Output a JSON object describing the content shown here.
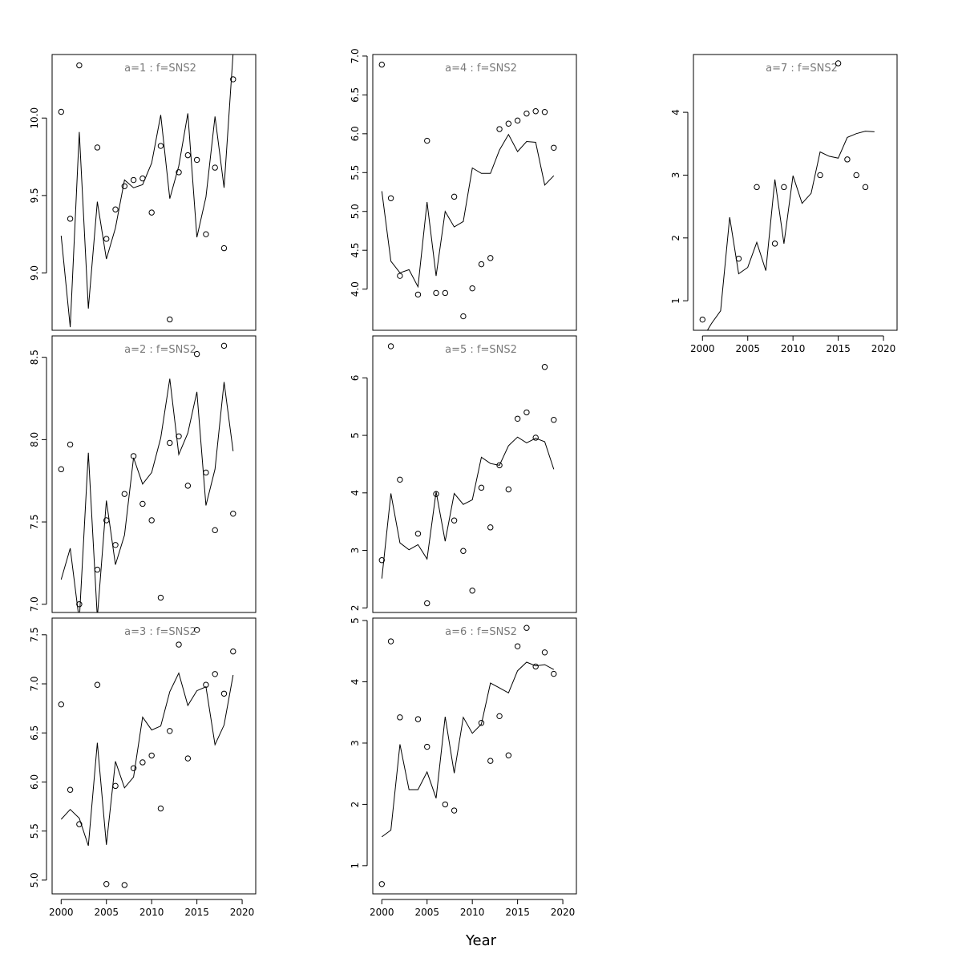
{
  "figure": {
    "xlabel": "Year"
  },
  "chart_data": [
    {
      "type": "line",
      "title": "a=1 : f=SNS2",
      "xlim": [
        1999.0,
        2021.5
      ],
      "ylim": [
        8.63,
        10.41
      ],
      "yticks": [
        9.0,
        9.5,
        10.0
      ],
      "ytick_labels": [
        "9.0",
        "9.5",
        "10.0"
      ],
      "xticks": [
        2000,
        2005,
        2010,
        2015,
        2020
      ],
      "xtick_labels": [
        "2000",
        "2005",
        "2010",
        "2015",
        "2020"
      ],
      "show_x_axis": false,
      "series": [
        {
          "kind": "points",
          "x": [
            2000,
            2001,
            2002,
            2004,
            2005,
            2006,
            2007,
            2008,
            2009,
            2010,
            2011,
            2012,
            2013,
            2014,
            2015,
            2016,
            2017,
            2018,
            2019
          ],
          "y": [
            10.04,
            9.35,
            10.34,
            9.81,
            9.22,
            9.41,
            9.56,
            9.6,
            9.61,
            9.39,
            9.82,
            8.7,
            9.65,
            9.76,
            9.73,
            9.25,
            9.68,
            9.16,
            10.25
          ]
        },
        {
          "kind": "line",
          "x": [
            2000,
            2001,
            2002,
            2003,
            2004,
            2005,
            2006,
            2007,
            2008,
            2009,
            2010,
            2011,
            2012,
            2013,
            2014,
            2015,
            2016,
            2017,
            2018,
            2019
          ],
          "y": [
            9.24,
            8.65,
            9.91,
            8.77,
            9.46,
            9.09,
            9.29,
            9.6,
            9.55,
            9.57,
            9.71,
            10.02,
            9.48,
            9.69,
            10.03,
            9.23,
            9.49,
            10.01,
            9.55,
            10.42
          ]
        }
      ]
    },
    {
      "type": "line",
      "title": "a=2 : f=SNS2",
      "xlim": [
        1999.0,
        2021.5
      ],
      "ylim": [
        6.95,
        8.63
      ],
      "yticks": [
        7.0,
        7.5,
        8.0,
        8.5
      ],
      "ytick_labels": [
        "7.0",
        "7.5",
        "8.0",
        "8.5"
      ],
      "xticks": [
        2000,
        2005,
        2010,
        2015,
        2020
      ],
      "xtick_labels": [
        "2000",
        "2005",
        "2010",
        "2015",
        "2020"
      ],
      "show_x_axis": false,
      "series": [
        {
          "kind": "points",
          "x": [
            2000,
            2001,
            2002,
            2004,
            2005,
            2006,
            2007,
            2008,
            2009,
            2010,
            2011,
            2012,
            2013,
            2014,
            2015,
            2016,
            2017,
            2018,
            2019
          ],
          "y": [
            7.82,
            7.97,
            7.0,
            7.21,
            7.51,
            7.36,
            7.67,
            7.9,
            7.61,
            7.51,
            7.04,
            7.98,
            8.02,
            7.72,
            8.52,
            7.8,
            7.45,
            8.57,
            7.55
          ]
        },
        {
          "kind": "line",
          "x": [
            2000,
            2001,
            2002,
            2003,
            2004,
            2005,
            2006,
            2007,
            2008,
            2009,
            2010,
            2011,
            2012,
            2013,
            2014,
            2015,
            2016,
            2017,
            2018,
            2019
          ],
          "y": [
            7.15,
            7.34,
            6.9,
            7.92,
            6.92,
            7.63,
            7.24,
            7.42,
            7.89,
            7.73,
            7.8,
            8.01,
            8.37,
            7.91,
            8.04,
            8.29,
            7.6,
            7.82,
            8.35,
            7.93
          ]
        }
      ]
    },
    {
      "type": "line",
      "title": "a=3 : f=SNS2",
      "xlim": [
        1999.0,
        2021.5
      ],
      "ylim": [
        4.86,
        7.67
      ],
      "yticks": [
        5.0,
        5.5,
        6.0,
        6.5,
        7.0,
        7.5
      ],
      "ytick_labels": [
        "5.0",
        "5.5",
        "6.0",
        "6.5",
        "7.0",
        "7.5"
      ],
      "xticks": [
        2000,
        2005,
        2010,
        2015,
        2020
      ],
      "xtick_labels": [
        "2000",
        "2005",
        "2010",
        "2015",
        "2020"
      ],
      "show_x_axis": true,
      "series": [
        {
          "kind": "points",
          "x": [
            2000,
            2001,
            2002,
            2004,
            2005,
            2006,
            2007,
            2008,
            2009,
            2010,
            2011,
            2012,
            2013,
            2014,
            2015,
            2016,
            2017,
            2018,
            2019
          ],
          "y": [
            6.79,
            5.92,
            5.57,
            6.99,
            4.96,
            5.96,
            4.95,
            6.14,
            6.2,
            6.27,
            5.73,
            6.52,
            7.4,
            6.24,
            7.55,
            6.99,
            7.1,
            6.9,
            7.33
          ]
        },
        {
          "kind": "line",
          "x": [
            2000,
            2001,
            2002,
            2003,
            2004,
            2005,
            2006,
            2007,
            2008,
            2009,
            2010,
            2011,
            2012,
            2013,
            2014,
            2015,
            2016,
            2017,
            2018,
            2019
          ],
          "y": [
            5.62,
            5.72,
            5.63,
            5.35,
            6.4,
            5.36,
            6.21,
            5.94,
            6.05,
            6.66,
            6.53,
            6.57,
            6.92,
            7.11,
            6.78,
            6.93,
            6.97,
            6.38,
            6.58,
            7.09
          ]
        }
      ]
    },
    {
      "type": "line",
      "title": "a=4 : f=SNS2",
      "xlim": [
        1999.0,
        2021.5
      ],
      "ylim": [
        3.47,
        7.02
      ],
      "yticks": [
        4.0,
        4.5,
        5.0,
        5.5,
        6.0,
        6.5,
        7.0
      ],
      "ytick_labels": [
        "4.0",
        "4.5",
        "5.0",
        "5.5",
        "6.0",
        "6.5",
        "7.0"
      ],
      "xticks": [
        2000,
        2005,
        2010,
        2015,
        2020
      ],
      "xtick_labels": [
        "2000",
        "2005",
        "2010",
        "2015",
        "2020"
      ],
      "show_x_axis": false,
      "series": [
        {
          "kind": "points",
          "x": [
            2000,
            2001,
            2002,
            2004,
            2005,
            2006,
            2007,
            2008,
            2009,
            2010,
            2011,
            2012,
            2013,
            2014,
            2015,
            2016,
            2017,
            2018,
            2019
          ],
          "y": [
            6.89,
            5.17,
            4.17,
            3.93,
            5.91,
            3.95,
            3.95,
            5.19,
            3.65,
            4.01,
            4.32,
            4.4,
            6.06,
            6.13,
            6.17,
            6.26,
            6.29,
            6.28,
            5.82
          ]
        },
        {
          "kind": "line",
          "x": [
            2000,
            2001,
            2002,
            2003,
            2004,
            2005,
            2006,
            2007,
            2008,
            2009,
            2010,
            2011,
            2012,
            2013,
            2014,
            2015,
            2016,
            2017,
            2018,
            2019
          ],
          "y": [
            5.26,
            4.36,
            4.21,
            4.25,
            4.03,
            5.12,
            4.17,
            5.0,
            4.8,
            4.87,
            5.56,
            5.49,
            5.49,
            5.79,
            5.99,
            5.77,
            5.9,
            5.89,
            5.34,
            5.46
          ]
        }
      ]
    },
    {
      "type": "line",
      "title": "a=5 : f=SNS2",
      "xlim": [
        1999.0,
        2021.5
      ],
      "ylim": [
        1.92,
        6.73
      ],
      "yticks": [
        2,
        3,
        4,
        5,
        6
      ],
      "ytick_labels": [
        "2",
        "3",
        "4",
        "5",
        "6"
      ],
      "xticks": [
        2000,
        2005,
        2010,
        2015,
        2020
      ],
      "xtick_labels": [
        "2000",
        "2005",
        "2010",
        "2015",
        "2020"
      ],
      "show_x_axis": false,
      "series": [
        {
          "kind": "points",
          "x": [
            2000,
            2001,
            2002,
            2004,
            2005,
            2006,
            2008,
            2009,
            2010,
            2011,
            2012,
            2013,
            2014,
            2015,
            2016,
            2017,
            2018,
            2019
          ],
          "y": [
            2.83,
            6.55,
            4.23,
            3.29,
            2.08,
            3.98,
            3.52,
            2.99,
            2.3,
            4.09,
            3.4,
            4.48,
            4.06,
            5.29,
            5.4,
            4.96,
            6.19,
            5.27
          ]
        },
        {
          "kind": "line",
          "x": [
            2000,
            2001,
            2002,
            2003,
            2004,
            2005,
            2006,
            2007,
            2008,
            2009,
            2010,
            2011,
            2012,
            2013,
            2014,
            2015,
            2016,
            2017,
            2018,
            2019
          ],
          "y": [
            2.51,
            3.99,
            3.13,
            3.01,
            3.1,
            2.85,
            4.02,
            3.16,
            3.99,
            3.8,
            3.88,
            4.62,
            4.51,
            4.48,
            4.82,
            4.97,
            4.87,
            4.95,
            4.89,
            4.41
          ]
        }
      ]
    },
    {
      "type": "line",
      "title": "a=6 : f=SNS2",
      "xlim": [
        1999.0,
        2021.5
      ],
      "ylim": [
        0.54,
        5.04
      ],
      "yticks": [
        1,
        2,
        3,
        4,
        5
      ],
      "ytick_labels": [
        "1",
        "2",
        "3",
        "4",
        "5"
      ],
      "xticks": [
        2000,
        2005,
        2010,
        2015,
        2020
      ],
      "xtick_labels": [
        "2000",
        "2005",
        "2010",
        "2015",
        "2020"
      ],
      "show_x_axis": true,
      "series": [
        {
          "kind": "points",
          "x": [
            2000,
            2001,
            2002,
            2004,
            2005,
            2007,
            2008,
            2011,
            2012,
            2013,
            2014,
            2015,
            2016,
            2017,
            2018,
            2019
          ],
          "y": [
            0.7,
            4.66,
            3.42,
            3.39,
            2.94,
            2.0,
            1.9,
            3.33,
            2.71,
            3.44,
            2.8,
            4.58,
            4.88,
            4.25,
            4.48,
            4.13
          ]
        },
        {
          "kind": "line",
          "x": [
            2000,
            2001,
            2002,
            2003,
            2004,
            2005,
            2006,
            2007,
            2008,
            2009,
            2010,
            2011,
            2012,
            2013,
            2014,
            2015,
            2016,
            2017,
            2018,
            2019
          ],
          "y": [
            1.47,
            1.58,
            2.98,
            2.24,
            2.24,
            2.53,
            2.1,
            3.43,
            2.51,
            3.42,
            3.16,
            3.31,
            3.98,
            3.9,
            3.82,
            4.18,
            4.32,
            4.26,
            4.28,
            4.2
          ]
        }
      ]
    },
    {
      "type": "line",
      "title": "a=7 : f=SNS2",
      "xlim": [
        1999.0,
        2021.5
      ],
      "ylim": [
        0.53,
        4.92
      ],
      "yticks": [
        1,
        2,
        3,
        4
      ],
      "ytick_labels": [
        "1",
        "2",
        "3",
        "4"
      ],
      "xticks": [
        2000,
        2005,
        2010,
        2015,
        2020
      ],
      "xtick_labels": [
        "2000",
        "2005",
        "2010",
        "2015",
        "2020"
      ],
      "show_x_axis": true,
      "series": [
        {
          "kind": "points",
          "x": [
            2000,
            2004,
            2006,
            2008,
            2009,
            2013,
            2015,
            2016,
            2017,
            2018
          ],
          "y": [
            0.7,
            1.67,
            2.81,
            1.91,
            2.81,
            3.0,
            4.78,
            3.25,
            3.0,
            2.81
          ]
        },
        {
          "kind": "line",
          "x": [
            2000,
            2001,
            2002,
            2003,
            2004,
            2005,
            2006,
            2007,
            2008,
            2009,
            2010,
            2011,
            2012,
            2013,
            2014,
            2015,
            2016,
            2017,
            2018,
            2019
          ],
          "y": [
            0.4,
            0.64,
            0.84,
            2.33,
            1.43,
            1.53,
            1.93,
            1.48,
            2.93,
            1.91,
            2.99,
            2.55,
            2.71,
            3.37,
            3.3,
            3.27,
            3.6,
            3.66,
            3.7,
            3.69
          ]
        }
      ]
    }
  ]
}
